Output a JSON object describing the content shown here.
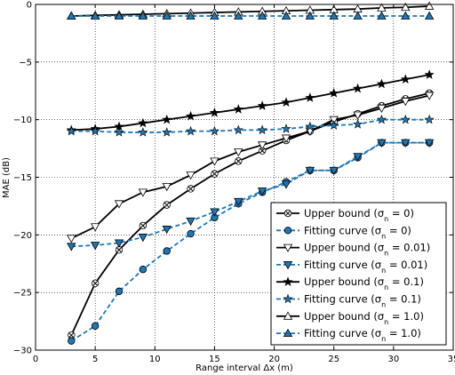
{
  "chart_data": {
    "type": "line",
    "title": "",
    "xlabel": "Range interval Δx (m)",
    "ylabel": "MAE (dB)",
    "xlim": [
      0,
      35
    ],
    "ylim": [
      -30,
      0
    ],
    "xticks": [
      0,
      5,
      10,
      15,
      20,
      25,
      30,
      35
    ],
    "yticks": [
      0,
      -5,
      -10,
      -15,
      -20,
      -25,
      -30
    ],
    "xtick_labels": [
      "0",
      "5",
      "10",
      "15",
      "20",
      "25",
      "30",
      "35"
    ],
    "ytick_labels": [
      "0",
      "−5",
      "−10",
      "−15",
      "−20",
      "−25",
      "−30"
    ],
    "grid": true,
    "legend_position": "lower-right",
    "x": [
      3,
      5,
      7,
      9,
      11,
      13,
      15,
      17,
      19,
      21,
      23,
      25,
      27,
      29,
      31,
      33
    ],
    "series": [
      {
        "name": "Upper bound",
        "sigma": "0",
        "color": "#000000",
        "marker": "circle-x",
        "dashed": false,
        "values": [
          -28.7,
          -24.2,
          -21.3,
          -19.2,
          -17.4,
          -16.0,
          -14.7,
          -13.6,
          -12.7,
          -11.8,
          -11.0,
          -10.2,
          -9.5,
          -8.8,
          -8.2,
          -7.7
        ]
      },
      {
        "name": "Fitting curve",
        "sigma": "0",
        "color": "#1f77b4",
        "marker": "circle",
        "dashed": true,
        "values": [
          -29.2,
          -27.9,
          -24.9,
          -23.0,
          -21.4,
          -19.9,
          -18.5,
          -17.3,
          -16.3,
          -15.4,
          -14.4,
          -14.4,
          -13.3,
          -12.0,
          -12.0,
          -12.0
        ]
      },
      {
        "name": "Upper bound",
        "sigma": "0.01",
        "color": "#000000",
        "marker": "triangle-down",
        "dashed": false,
        "values": [
          -20.3,
          -19.3,
          -17.3,
          -16.3,
          -15.8,
          -14.8,
          -13.6,
          -12.8,
          -12.2,
          -11.6,
          -11.0,
          -10.0,
          -9.6,
          -9.0,
          -8.4,
          -7.9
        ]
      },
      {
        "name": "Fitting curve",
        "sigma": "0.01",
        "color": "#1f77b4",
        "marker": "triangle-down",
        "dashed": true,
        "values": [
          -21.0,
          -20.9,
          -20.7,
          -20.2,
          -19.5,
          -18.8,
          -18.0,
          -17.1,
          -16.2,
          -15.6,
          -14.4,
          -14.4,
          -13.2,
          -12.0,
          -12.0,
          -12.0
        ]
      },
      {
        "name": "Upper bound",
        "sigma": "0.1",
        "color": "#000000",
        "marker": "star",
        "dashed": false,
        "values": [
          -10.9,
          -10.8,
          -10.6,
          -10.3,
          -10.0,
          -9.7,
          -9.4,
          -9.1,
          -8.8,
          -8.5,
          -8.1,
          -7.7,
          -7.3,
          -6.9,
          -6.5,
          -6.1
        ]
      },
      {
        "name": "Fitting curve",
        "sigma": "0.1",
        "color": "#1f77b4",
        "marker": "star",
        "dashed": true,
        "values": [
          -11.0,
          -11.0,
          -11.1,
          -11.1,
          -11.1,
          -11.0,
          -11.0,
          -10.9,
          -10.9,
          -10.8,
          -10.6,
          -10.5,
          -10.4,
          -10.0,
          -10.0,
          -10.0
        ]
      },
      {
        "name": "Upper bound",
        "sigma": "1.0",
        "color": "#000000",
        "marker": "triangle-up",
        "dashed": false,
        "values": [
          -1.0,
          -0.95,
          -0.9,
          -0.85,
          -0.8,
          -0.75,
          -0.7,
          -0.65,
          -0.6,
          -0.55,
          -0.5,
          -0.45,
          -0.4,
          -0.3,
          -0.25,
          -0.15
        ]
      },
      {
        "name": "Fitting curve",
        "sigma": "1.0",
        "color": "#1f77b4",
        "marker": "triangle-up",
        "dashed": true,
        "values": [
          -1.0,
          -1.0,
          -1.0,
          -1.0,
          -1.0,
          -1.0,
          -1.0,
          -1.0,
          -1.0,
          -1.0,
          -1.0,
          -1.0,
          -1.0,
          -1.0,
          -1.0,
          -1.0
        ]
      }
    ]
  }
}
